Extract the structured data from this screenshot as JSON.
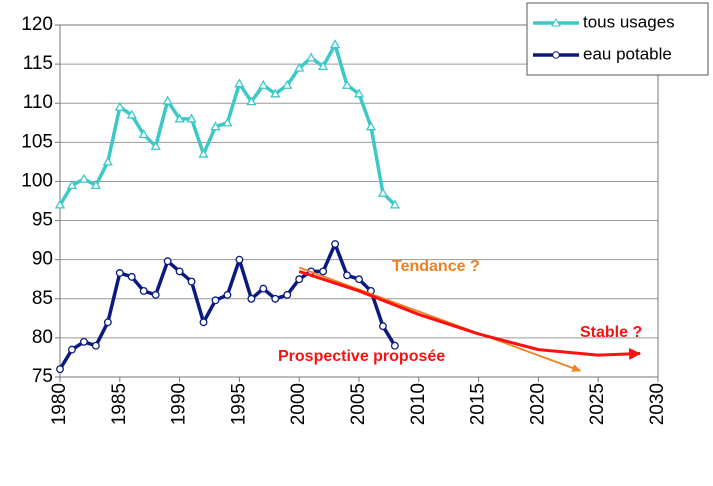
{
  "chart_data": {
    "type": "line",
    "x": [
      1980,
      1981,
      1982,
      1983,
      1984,
      1985,
      1986,
      1987,
      1988,
      1989,
      1990,
      1991,
      1992,
      1993,
      1994,
      1995,
      1996,
      1997,
      1998,
      1999,
      2000,
      2001,
      2002,
      2003,
      2004,
      2005,
      2006,
      2007,
      2008
    ],
    "series": [
      {
        "name": "tous usages",
        "color": "#3cc8c8",
        "marker": "triangle",
        "values": [
          97,
          99.5,
          100.3,
          99.5,
          102.5,
          109.5,
          108.5,
          106,
          104.5,
          110.3,
          108,
          108,
          103.5,
          107,
          107.5,
          112.5,
          110.2,
          112.3,
          111.2,
          112.3,
          114.5,
          115.8,
          114.7,
          117.5,
          112.3,
          111.2,
          107,
          98.5,
          97
        ]
      },
      {
        "name": "eau potable",
        "color": "#0a1a80",
        "marker": "circle",
        "values": [
          76,
          78.5,
          79.5,
          79,
          82,
          88.3,
          87.8,
          86,
          85.5,
          89.8,
          88.5,
          87.2,
          82,
          84.8,
          85.5,
          90,
          85,
          86.3,
          85,
          85.5,
          87.5,
          88.5,
          88.5,
          92,
          88,
          87.5,
          86,
          81.5,
          79
        ]
      }
    ],
    "trend_lines": [
      {
        "color": "#f08020",
        "x": [
          2000,
          2023.5
        ],
        "y": [
          89,
          75.8
        ]
      },
      {
        "color": "#ff1010",
        "x": [
          2000,
          2005,
          2010,
          2015,
          2020,
          2025,
          2028.5
        ],
        "y": [
          88.5,
          86,
          83,
          80.5,
          78.5,
          77.8,
          78
        ]
      }
    ],
    "annotations": [
      {
        "text": "Tendance ?",
        "color": "#f08020"
      },
      {
        "text": "Prospective proposée",
        "color": "#ff1010"
      },
      {
        "text": "Stable ?",
        "color": "#ff1010"
      }
    ],
    "xlim": [
      1980,
      2030
    ],
    "xticks": [
      1980,
      1985,
      1990,
      1995,
      2000,
      2005,
      2010,
      2015,
      2020,
      2025,
      2030
    ],
    "ylim": [
      75,
      120
    ],
    "yticks": [
      75,
      80,
      85,
      90,
      95,
      100,
      105,
      110,
      115,
      120
    ],
    "grid": true,
    "legend": "top-right"
  }
}
